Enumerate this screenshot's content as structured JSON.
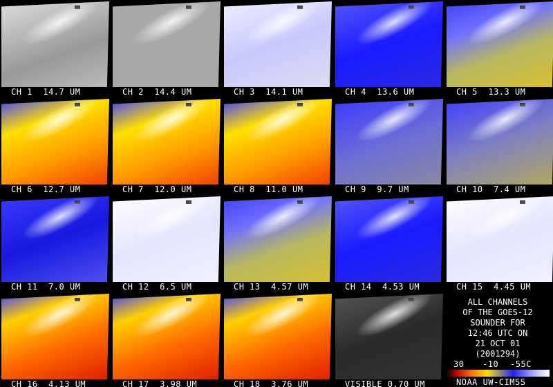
{
  "panels": [
    {
      "label": "CH 1  14.7 UM"
    },
    {
      "label": "CH 2  14.4 UM"
    },
    {
      "label": "CH 3  14.1 UM"
    },
    {
      "label": "CH 4  13.6 UM"
    },
    {
      "label": "CH 5  13.3 UM"
    },
    {
      "label": "CH 6  12.7 UM"
    },
    {
      "label": "CH 7  12.0 UM"
    },
    {
      "label": "CH 8  11.0 UM"
    },
    {
      "label": "CH 9  9.7 UM"
    },
    {
      "label": "CH 10  7.4 UM"
    },
    {
      "label": "CH 11  7.0 UM"
    },
    {
      "label": "CH 12  6.5 UM"
    },
    {
      "label": "CH 13  4.57 UM"
    },
    {
      "label": "CH 14  4.53 UM"
    },
    {
      "label": "CH 15  4.45 UM"
    },
    {
      "label": "CH 16  4.13 UM"
    },
    {
      "label": "CH 17  3.98 UM"
    },
    {
      "label": "CH 18  3.76 UM"
    },
    {
      "label": "VISIBLE 0.70 UM"
    }
  ],
  "info": {
    "lines": [
      "ALL CHANNELS",
      "OF THE GOES-12",
      "SOUNDER FOR",
      "12:46 UTC ON",
      "21 OCT 01",
      "(2001294)"
    ]
  },
  "colorbar": {
    "labels": [
      "30",
      "-10",
      "-55C"
    ]
  },
  "credit": "NOAA UW-CIMSS"
}
